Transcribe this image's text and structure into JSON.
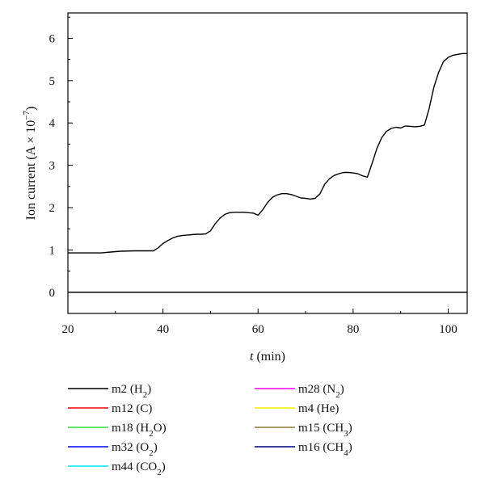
{
  "chart_data": {
    "type": "line",
    "title": "",
    "xlabel": {
      "var": "t",
      "unit": " (min)"
    },
    "ylabel": {
      "prefix": "Ion current (A × 10",
      "sup": "−7",
      "suffix": ")"
    },
    "xlim": [
      20,
      104
    ],
    "ylim": [
      -0.5,
      6.6
    ],
    "xticks": [
      20,
      40,
      60,
      80,
      100
    ],
    "yticks": [
      0,
      1,
      2,
      3,
      4,
      5,
      6
    ],
    "grid": false,
    "legend_position": "bottom, two columns",
    "series": [
      {
        "name": "m2 (H2)",
        "label_parts": [
          {
            "t": "m2 (H"
          },
          {
            "t": "2",
            "sub": true
          },
          {
            "t": ")"
          }
        ],
        "color": "#000000",
        "x": [
          20,
          24,
          27,
          29,
          31,
          34,
          36,
          38,
          39,
          40,
          41,
          42,
          43,
          44,
          45,
          46,
          47,
          48,
          49,
          50,
          51,
          52,
          53,
          54,
          55,
          56,
          57,
          58,
          59,
          60,
          61,
          62,
          63,
          64,
          65,
          66,
          67,
          68,
          69,
          70,
          71,
          72,
          73,
          74,
          75,
          76,
          77,
          78,
          79,
          80,
          81,
          82,
          83,
          84,
          85,
          86,
          87,
          88,
          89,
          90,
          91,
          92,
          93,
          94,
          95,
          96,
          97,
          98,
          99,
          100,
          101,
          102,
          103,
          104
        ],
        "y": [
          0.93,
          0.93,
          0.93,
          0.95,
          0.97,
          0.98,
          0.98,
          0.98,
          1.05,
          1.15,
          1.22,
          1.28,
          1.32,
          1.34,
          1.35,
          1.36,
          1.37,
          1.37,
          1.38,
          1.45,
          1.62,
          1.75,
          1.84,
          1.88,
          1.89,
          1.89,
          1.89,
          1.88,
          1.87,
          1.82,
          1.95,
          2.12,
          2.24,
          2.3,
          2.33,
          2.33,
          2.31,
          2.27,
          2.23,
          2.22,
          2.2,
          2.22,
          2.32,
          2.55,
          2.68,
          2.76,
          2.8,
          2.83,
          2.83,
          2.82,
          2.8,
          2.75,
          2.72,
          3.05,
          3.4,
          3.65,
          3.8,
          3.87,
          3.9,
          3.88,
          3.93,
          3.92,
          3.91,
          3.92,
          3.95,
          4.35,
          4.85,
          5.2,
          5.45,
          5.55,
          5.6,
          5.62,
          5.64,
          5.64
        ]
      },
      {
        "name": "m12 (C)",
        "label_parts": [
          {
            "t": "m12 (C)"
          }
        ],
        "color": "#ff0000",
        "x": [
          20,
          104
        ],
        "y": [
          0,
          0
        ]
      },
      {
        "name": "m18 (H2O)",
        "label_parts": [
          {
            "t": "m18 (H"
          },
          {
            "t": "2",
            "sub": true
          },
          {
            "t": "O)"
          }
        ],
        "color": "#33dd33",
        "x": [
          20,
          104
        ],
        "y": [
          0,
          0
        ]
      },
      {
        "name": "m32 (O2)",
        "label_parts": [
          {
            "t": "m32 (O"
          },
          {
            "t": "2",
            "sub": true
          },
          {
            "t": ")"
          }
        ],
        "color": "#0000ff",
        "x": [
          20,
          104
        ],
        "y": [
          0,
          0
        ]
      },
      {
        "name": "m44 (CO2)",
        "label_parts": [
          {
            "t": "m44 (CO"
          },
          {
            "t": "2",
            "sub": true
          },
          {
            "t": ")"
          }
        ],
        "color": "#00e5ee",
        "x": [
          20,
          104
        ],
        "y": [
          0,
          0
        ]
      },
      {
        "name": "m28 (N2)",
        "label_parts": [
          {
            "t": "m28 (N"
          },
          {
            "t": "2",
            "sub": true
          },
          {
            "t": ")"
          }
        ],
        "color": "#ff00ff",
        "x": [
          20,
          104
        ],
        "y": [
          0,
          0
        ]
      },
      {
        "name": "m4 (He)",
        "label_parts": [
          {
            "t": "m4 (He)"
          }
        ],
        "color": "#eeee00",
        "x": [
          20,
          104
        ],
        "y": [
          0,
          0
        ]
      },
      {
        "name": "m15 (CH3)",
        "label_parts": [
          {
            "t": "m15 (CH"
          },
          {
            "t": "3",
            "sub": true
          },
          {
            "t": ")"
          }
        ],
        "color": "#8b7a2b",
        "x": [
          20,
          104
        ],
        "y": [
          0,
          0
        ]
      },
      {
        "name": "m16 (CH4)",
        "label_parts": [
          {
            "t": "m16 (CH"
          },
          {
            "t": "4",
            "sub": true
          },
          {
            "t": ")"
          }
        ],
        "color": "#000080",
        "x": [
          20,
          104
        ],
        "y": [
          0,
          0
        ]
      }
    ]
  }
}
